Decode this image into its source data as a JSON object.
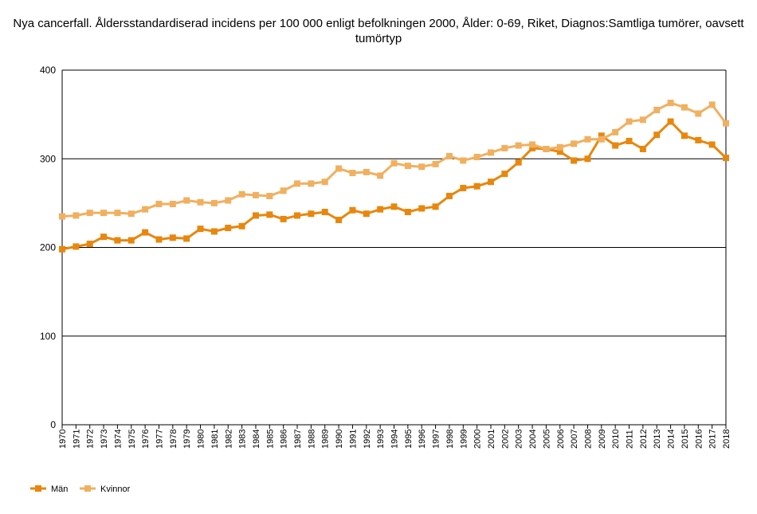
{
  "chart_data": {
    "type": "line",
    "title": "Nya cancerfall. Åldersstandardiserad incidens per 100 000 enligt befolkningen 2000, Ålder: 0-69, Riket, Diagnos:Samtliga tumörer, oavsett tumörtyp",
    "xlabel": "",
    "ylabel": "",
    "ylim": [
      0,
      400
    ],
    "yticks": [
      0,
      100,
      200,
      300,
      400
    ],
    "grid": true,
    "legend_position": "bottom-left",
    "x": [
      1970,
      1971,
      1972,
      1973,
      1974,
      1975,
      1976,
      1977,
      1978,
      1979,
      1980,
      1981,
      1982,
      1983,
      1984,
      1985,
      1986,
      1987,
      1988,
      1989,
      1990,
      1991,
      1992,
      1993,
      1994,
      1995,
      1996,
      1997,
      1998,
      1999,
      2000,
      2001,
      2002,
      2003,
      2004,
      2005,
      2006,
      2007,
      2008,
      2009,
      2010,
      2011,
      2012,
      2013,
      2014,
      2015,
      2016,
      2017,
      2018
    ],
    "series": [
      {
        "name": "Män",
        "color": "#e8870e",
        "values": [
          198,
          201,
          204,
          212,
          208,
          208,
          217,
          209,
          211,
          210,
          221,
          218,
          222,
          224,
          236,
          237,
          232,
          236,
          238,
          240,
          231,
          242,
          238,
          243,
          246,
          240,
          244,
          246,
          258,
          267,
          269,
          274,
          283,
          296,
          312,
          311,
          308,
          298,
          300,
          326,
          315,
          320,
          311,
          327,
          342,
          326,
          321,
          316,
          301
        ]
      },
      {
        "name": "Kvinnor",
        "color": "#f0b060",
        "values": [
          235,
          236,
          239,
          239,
          239,
          238,
          243,
          249,
          249,
          253,
          251,
          250,
          253,
          260,
          259,
          258,
          264,
          272,
          272,
          274,
          289,
          284,
          285,
          281,
          295,
          292,
          291,
          294,
          303,
          298,
          302,
          307,
          312,
          315,
          316,
          311,
          313,
          317,
          322,
          322,
          330,
          342,
          344,
          355,
          363,
          358,
          351,
          361,
          340
        ]
      }
    ]
  }
}
